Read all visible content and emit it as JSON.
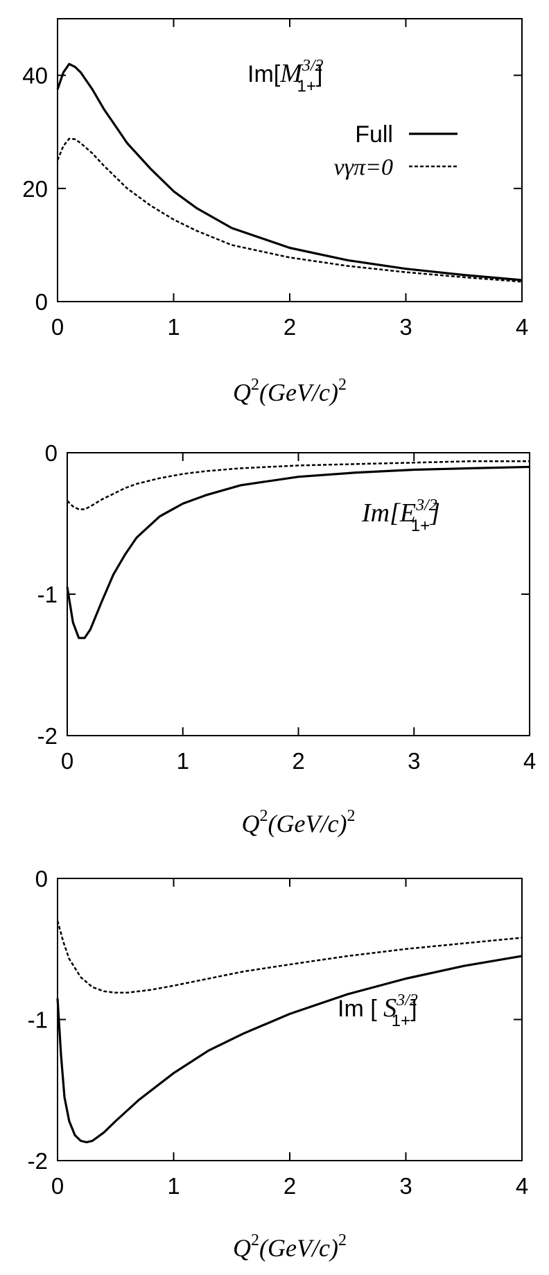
{
  "chart_data": [
    {
      "type": "line",
      "title": "Im[M3/2 1+]",
      "title_parts": {
        "pre": "Im[",
        "sym": "M",
        "sup": "3/2",
        "sub": "1+",
        "post": "]"
      },
      "xlabel": "Q2(GeV/c)2",
      "xlim": [
        0,
        4
      ],
      "ylim": [
        0,
        50
      ],
      "xticks": [
        "0",
        "1",
        "2",
        "3",
        "4"
      ],
      "yticks": [
        "0",
        "20",
        "40"
      ],
      "legend": {
        "position": "top-right",
        "entries": [
          "Full",
          "νγπ=0"
        ]
      },
      "series": [
        {
          "name": "Full",
          "style": "solid",
          "x": [
            0,
            0.05,
            0.1,
            0.15,
            0.2,
            0.3,
            0.4,
            0.5,
            0.6,
            0.8,
            1.0,
            1.2,
            1.5,
            2.0,
            2.5,
            3.0,
            3.5,
            4.0
          ],
          "y": [
            37.5,
            40.5,
            42,
            41.5,
            40.5,
            37.5,
            34,
            31,
            28,
            23.5,
            19.5,
            16.5,
            13,
            9.5,
            7.3,
            5.8,
            4.7,
            3.8
          ]
        },
        {
          "name": "νγπ=0",
          "style": "dashed",
          "x": [
            0,
            0.05,
            0.1,
            0.15,
            0.2,
            0.3,
            0.4,
            0.5,
            0.6,
            0.8,
            1.0,
            1.2,
            1.5,
            2.0,
            2.5,
            3.0,
            3.5,
            4.0
          ],
          "y": [
            25,
            27.5,
            28.8,
            28.7,
            28,
            26.2,
            24,
            22,
            20,
            17,
            14.5,
            12.5,
            10,
            7.8,
            6.3,
            5.2,
            4.3,
            3.5
          ]
        }
      ]
    },
    {
      "type": "line",
      "title": "Im[E3/2 1+]",
      "title_parts": {
        "pre": "Im[",
        "sym": "E",
        "sup": "3/2",
        "sub": "1+",
        "post": "]"
      },
      "xlabel": "Q2(GeV/c)2",
      "xlim": [
        0,
        4
      ],
      "ylim": [
        -2,
        0
      ],
      "xticks": [
        "0",
        "1",
        "2",
        "3",
        "4"
      ],
      "yticks": [
        "0",
        "-1",
        "-2"
      ],
      "series": [
        {
          "name": "",
          "style": "solid",
          "x": [
            0,
            0.05,
            0.1,
            0.15,
            0.2,
            0.3,
            0.4,
            0.5,
            0.6,
            0.8,
            1.0,
            1.2,
            1.5,
            2.0,
            2.5,
            3.0,
            3.5,
            4.0
          ],
          "y": [
            -0.95,
            -1.2,
            -1.31,
            -1.31,
            -1.25,
            -1.05,
            -0.86,
            -0.72,
            -0.6,
            -0.45,
            -0.36,
            -0.3,
            -0.23,
            -0.17,
            -0.14,
            -0.12,
            -0.11,
            -0.1
          ]
        },
        {
          "name": "",
          "style": "dashed",
          "x": [
            0,
            0.05,
            0.1,
            0.15,
            0.2,
            0.3,
            0.4,
            0.5,
            0.6,
            0.8,
            1.0,
            1.2,
            1.5,
            2.0,
            2.5,
            3.0,
            3.5,
            4.0
          ],
          "y": [
            -0.34,
            -0.38,
            -0.4,
            -0.4,
            -0.38,
            -0.33,
            -0.29,
            -0.25,
            -0.22,
            -0.18,
            -0.15,
            -0.13,
            -0.11,
            -0.09,
            -0.08,
            -0.07,
            -0.06,
            -0.06
          ]
        }
      ]
    },
    {
      "type": "line",
      "title": "Im [ S3/2 1+]",
      "title_parts": {
        "pre": "Im [ ",
        "sym": "S",
        "sup": "3/2",
        "sub": "1+",
        "post": "]"
      },
      "xlabel": "Q2(GeV/c)2",
      "xlim": [
        0,
        4
      ],
      "ylim": [
        -2,
        0
      ],
      "xticks": [
        "0",
        "1",
        "2",
        "3",
        "4"
      ],
      "yticks": [
        "0",
        "-1",
        "-2"
      ],
      "series": [
        {
          "name": "",
          "style": "solid",
          "x": [
            0,
            0.03,
            0.06,
            0.1,
            0.15,
            0.2,
            0.25,
            0.3,
            0.4,
            0.5,
            0.7,
            1.0,
            1.3,
            1.6,
            2.0,
            2.5,
            3.0,
            3.5,
            4.0
          ],
          "y": [
            -0.85,
            -1.25,
            -1.55,
            -1.72,
            -1.82,
            -1.86,
            -1.87,
            -1.86,
            -1.8,
            -1.72,
            -1.57,
            -1.38,
            -1.22,
            -1.1,
            -0.96,
            -0.82,
            -0.71,
            -0.62,
            -0.55
          ]
        },
        {
          "name": "",
          "style": "dashed",
          "x": [
            0,
            0.05,
            0.1,
            0.2,
            0.3,
            0.4,
            0.5,
            0.6,
            0.8,
            1.0,
            1.3,
            1.6,
            2.0,
            2.5,
            3.0,
            3.5,
            4.0
          ],
          "y": [
            -0.3,
            -0.45,
            -0.57,
            -0.7,
            -0.77,
            -0.8,
            -0.81,
            -0.81,
            -0.79,
            -0.76,
            -0.71,
            -0.66,
            -0.61,
            -0.55,
            -0.5,
            -0.46,
            -0.42
          ]
        }
      ]
    }
  ]
}
